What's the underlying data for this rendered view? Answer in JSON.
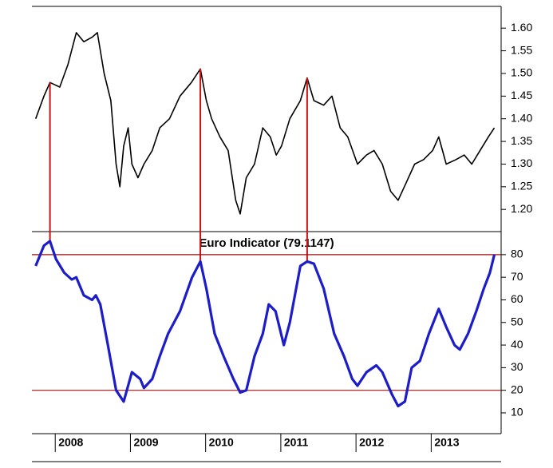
{
  "chart_data": [
    {
      "type": "line",
      "x": [
        2007.74,
        2007.85,
        2007.93,
        2008.06,
        2008.17,
        2008.28,
        2008.38,
        2008.49,
        2008.56,
        2008.65,
        2008.74,
        2008.81,
        2008.86,
        2008.91,
        2008.97,
        2009.02,
        2009.1,
        2009.18,
        2009.29,
        2009.39,
        2009.52,
        2009.66,
        2009.81,
        2009.93,
        2010.01,
        2010.08,
        2010.19,
        2010.3,
        2010.4,
        2010.46,
        2010.54,
        2010.65,
        2010.76,
        2010.86,
        2010.94,
        2011.01,
        2011.12,
        2011.26,
        2011.35,
        2011.44,
        2011.57,
        2011.68,
        2011.79,
        2011.89,
        2012.02,
        2012.14,
        2012.24,
        2012.35,
        2012.46,
        2012.56,
        2012.67,
        2012.78,
        2012.9,
        2013.02,
        2013.1,
        2013.2,
        2013.33,
        2013.44,
        2013.54,
        2013.65,
        2013.76,
        2013.84
      ],
      "values": [
        1.4,
        1.45,
        1.48,
        1.47,
        1.52,
        1.59,
        1.57,
        1.58,
        1.59,
        1.5,
        1.44,
        1.3,
        1.25,
        1.34,
        1.38,
        1.3,
        1.27,
        1.3,
        1.33,
        1.38,
        1.4,
        1.45,
        1.48,
        1.51,
        1.44,
        1.4,
        1.36,
        1.33,
        1.22,
        1.19,
        1.27,
        1.3,
        1.38,
        1.36,
        1.32,
        1.34,
        1.4,
        1.44,
        1.49,
        1.44,
        1.43,
        1.45,
        1.38,
        1.36,
        1.3,
        1.32,
        1.33,
        1.3,
        1.24,
        1.22,
        1.26,
        1.3,
        1.31,
        1.33,
        1.36,
        1.3,
        1.31,
        1.32,
        1.3,
        1.33,
        1.36,
        1.38
      ],
      "color": "#000000",
      "xlim": [
        2007.69,
        2013.93
      ],
      "ylim": [
        1.151,
        1.648
      ],
      "yticks": [
        {
          "value": 1.2,
          "label": "1.20"
        },
        {
          "value": 1.25,
          "label": "1.25"
        },
        {
          "value": 1.3,
          "label": "1.30"
        },
        {
          "value": 1.35,
          "label": "1.35"
        },
        {
          "value": 1.4,
          "label": "1.40"
        },
        {
          "value": 1.45,
          "label": "1.45"
        },
        {
          "value": 1.5,
          "label": "1.50"
        },
        {
          "value": 1.55,
          "label": "1.55"
        },
        {
          "value": 1.6,
          "label": "1.60"
        }
      ],
      "vlines": [
        2007.93,
        2009.93,
        2011.35
      ],
      "vline_color": "#d01010"
    },
    {
      "type": "line",
      "title": "Euro Indicator (79.1147)",
      "x": [
        2007.74,
        2007.85,
        2007.93,
        2008.01,
        2008.12,
        2008.22,
        2008.28,
        2008.38,
        2008.49,
        2008.54,
        2008.6,
        2008.7,
        2008.81,
        2008.91,
        2009.02,
        2009.13,
        2009.18,
        2009.29,
        2009.39,
        2009.5,
        2009.66,
        2009.82,
        2009.93,
        2010.01,
        2010.12,
        2010.24,
        2010.37,
        2010.46,
        2010.54,
        2010.65,
        2010.76,
        2010.84,
        2010.93,
        2011.04,
        2011.12,
        2011.26,
        2011.35,
        2011.44,
        2011.57,
        2011.71,
        2011.84,
        2011.95,
        2012.02,
        2012.14,
        2012.27,
        2012.35,
        2012.48,
        2012.56,
        2012.65,
        2012.74,
        2012.85,
        2012.97,
        2013.1,
        2013.2,
        2013.31,
        2013.38,
        2013.49,
        2013.6,
        2013.7,
        2013.78,
        2013.84
      ],
      "values": [
        75,
        84,
        86,
        78,
        72,
        69,
        70,
        62,
        60,
        62,
        58,
        40,
        20,
        15,
        28,
        25,
        21,
        25,
        35,
        45,
        55,
        70,
        77,
        65,
        45,
        35,
        25,
        19,
        20,
        35,
        45,
        58,
        55,
        40,
        50,
        75,
        77,
        76,
        65,
        45,
        35,
        25,
        22,
        28,
        31,
        28,
        18,
        13,
        15,
        30,
        33,
        45,
        56,
        48,
        40,
        38,
        45,
        55,
        65,
        72,
        80
      ],
      "color": "#1c1cc8",
      "xlim": [
        2007.69,
        2013.93
      ],
      "xticks": [
        2008,
        2009,
        2010,
        2011,
        2012,
        2013
      ],
      "ylim": [
        0.8,
        90.2
      ],
      "yticks": [
        10,
        20,
        30,
        40,
        50,
        60,
        70,
        80
      ],
      "hlines": [
        80,
        20
      ],
      "hline_color": "#a01010"
    }
  ]
}
